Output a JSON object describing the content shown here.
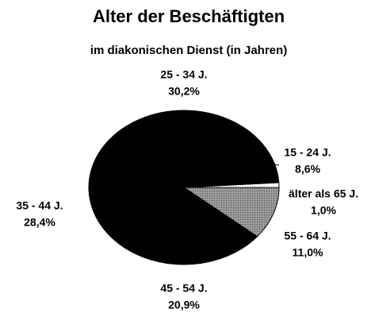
{
  "chart_data": {
    "type": "pie",
    "title": "Alter der Beschäftigten",
    "subtitle": "im diakonischen Dienst (in Jahren)",
    "categories": [
      "55 - 64 J.",
      "älter als 65 J.",
      "15 - 24 J.",
      "25 - 34 J.",
      "35 - 44 J.",
      "45 - 54 J."
    ],
    "values": [
      11.0,
      1.0,
      8.6,
      30.2,
      28.4,
      20.9
    ],
    "value_labels": [
      "11,0%",
      "1,0%",
      "8,6%",
      "30,2%",
      "28,4%",
      "20,9%"
    ],
    "colors": [
      "#8c8c8c",
      "#ffffff",
      "#000000",
      "#000000",
      "#000000",
      "#000000"
    ]
  }
}
